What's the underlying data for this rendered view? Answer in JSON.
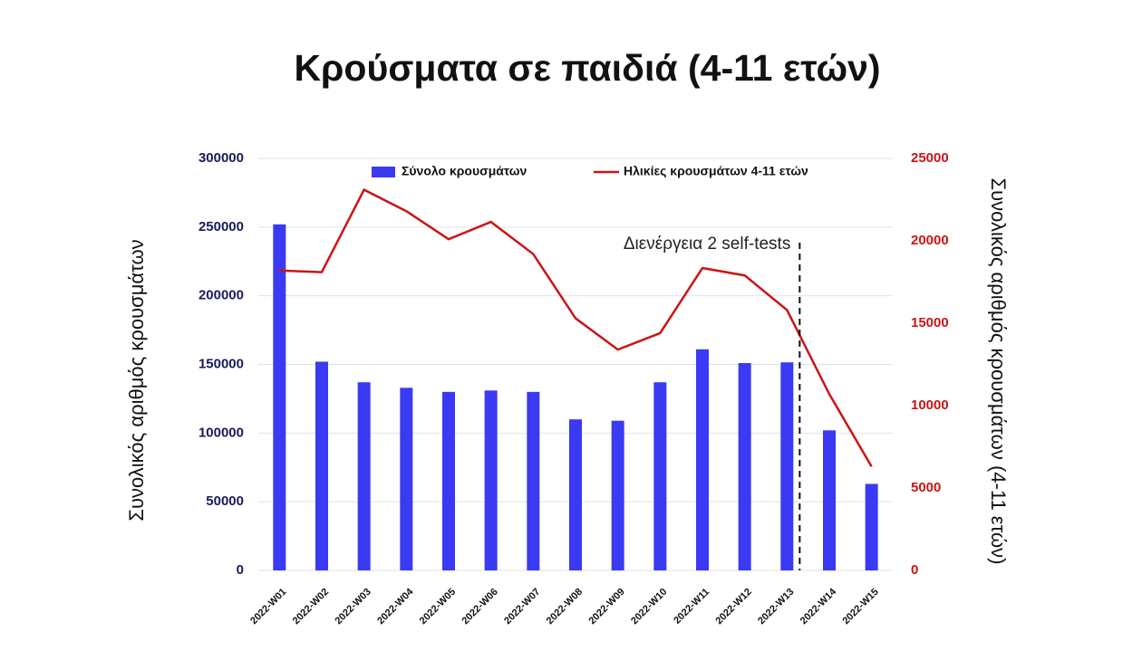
{
  "chart_data": {
    "type": "bar_line",
    "title": "Κρούσματα σε παιδιά (4-11 ετών)",
    "y_label": "Συνολικός αριθμός κρουσμάτων",
    "y2_label": "Συνολικός αριθμός κρουσμάτων (4-11 ετών)",
    "annotation": "Διενέργεια 2 self-tests",
    "categories": [
      "2022-W01",
      "2022-W02",
      "2022-W03",
      "2022-W04",
      "2022-W05",
      "2022-W06",
      "2022-W07",
      "2022-W08",
      "2022-W09",
      "2022-W10",
      "2022-W11",
      "2022-W12",
      "2022-W13",
      "2022-W14",
      "2022-W15"
    ],
    "series": [
      {
        "name": "Σύνολο κρουσμάτων",
        "type": "bar",
        "color": "#3a3af2",
        "values": [
          252000,
          152000,
          137000,
          133000,
          130000,
          131000,
          130000,
          110000,
          109000,
          137000,
          161000,
          151000,
          151500,
          102000,
          63000
        ]
      },
      {
        "name": "Ηλικίες κρουσμάτων 4-11 ετών",
        "type": "line",
        "axis": "y2",
        "color": "#cc1414",
        "values": [
          18200,
          18100,
          23100,
          21800,
          20100,
          21150,
          19200,
          15300,
          13400,
          14400,
          18350,
          17900,
          15800,
          10700,
          6300
        ]
      }
    ],
    "ylim": [
      0,
      300000
    ],
    "yticks": [
      0,
      50000,
      100000,
      150000,
      200000,
      250000,
      300000
    ],
    "y2lim": [
      0,
      25000
    ],
    "y2ticks": [
      0,
      5000,
      10000,
      15000,
      20000,
      25000
    ],
    "grid": true,
    "legend": "top"
  }
}
